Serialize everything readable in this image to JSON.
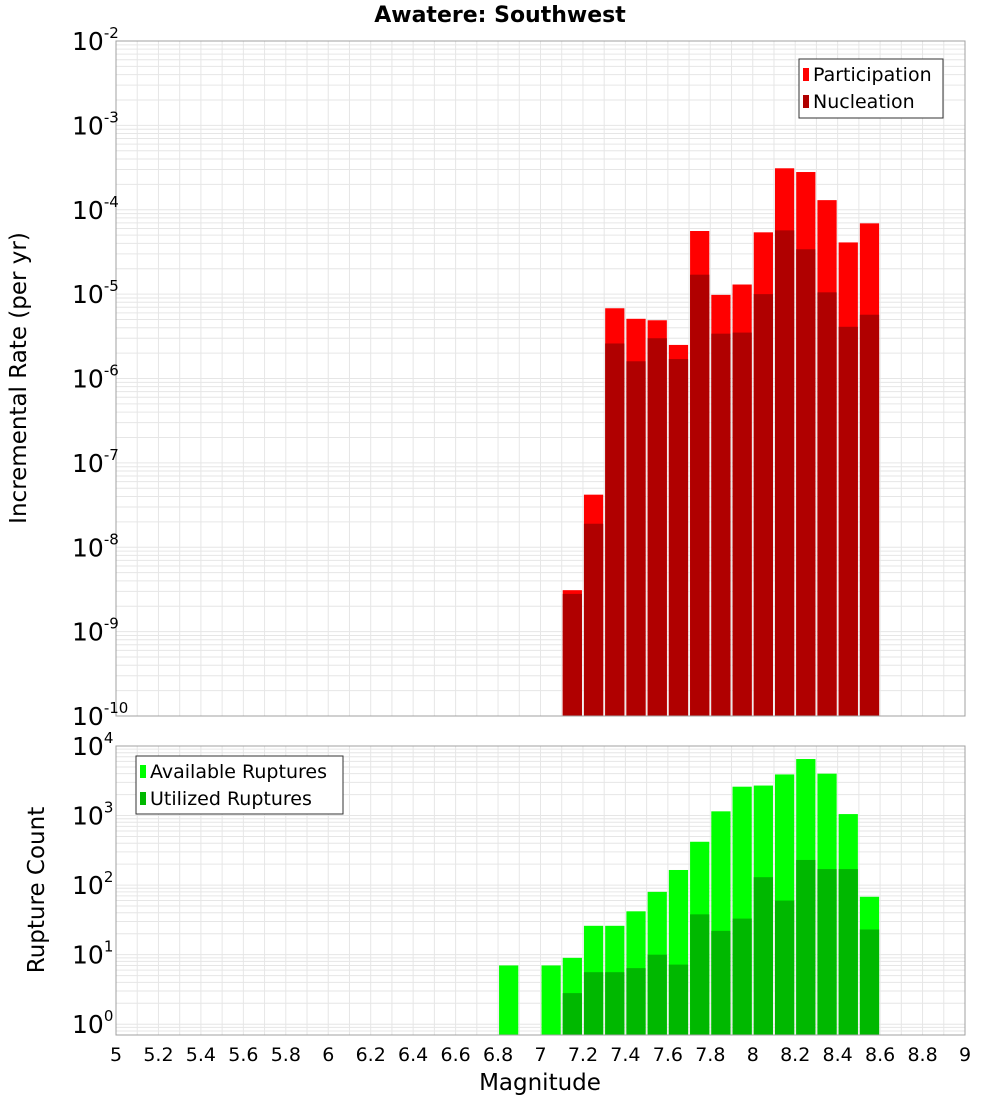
{
  "colors": {
    "participation": "#ff0000",
    "nucleation": "#b00000",
    "available": "#00ff00",
    "utilized": "#00b800",
    "grid": "#e6e6e6",
    "frame": "#a0a0a0"
  },
  "chart_data": [
    {
      "type": "bar",
      "title": "Awatere: Southwest",
      "ylabel": "Incremental Rate (per yr)",
      "yscale": "log",
      "ylim": [
        1e-10,
        0.01
      ],
      "xlim": [
        5,
        9
      ],
      "grid": true,
      "legend_placement": "top-right",
      "ytick_exponents": [
        -2,
        -3,
        -4,
        -5,
        -6,
        -7,
        -8,
        -9,
        -10
      ],
      "x": [
        7.15,
        7.25,
        7.35,
        7.45,
        7.55,
        7.65,
        7.75,
        7.85,
        7.95,
        8.05,
        8.15,
        8.25,
        8.35,
        8.45,
        8.55
      ],
      "series": [
        {
          "name": "Participation",
          "color_key": "participation",
          "values": [
            3.1e-09,
            4.2e-08,
            6.8e-06,
            5.1e-06,
            4.9e-06,
            2.5e-06,
            5.6e-05,
            9.8e-06,
            1.3e-05,
            5.4e-05,
            0.00031,
            0.00028,
            0.00013,
            4.1e-05,
            6.9e-05
          ]
        },
        {
          "name": "Nucleation",
          "color_key": "nucleation",
          "values": [
            2.8e-09,
            1.9e-08,
            2.6e-06,
            1.6e-06,
            3e-06,
            1.7e-06,
            1.7e-05,
            3.4e-06,
            3.5e-06,
            1e-05,
            5.7e-05,
            3.4e-05,
            1.05e-05,
            4.1e-06,
            5.7e-06
          ]
        }
      ]
    },
    {
      "type": "bar",
      "ylabel": "Rupture Count",
      "xlabel": "Magnitude",
      "yscale": "log",
      "ylim": [
        0.7,
        10000
      ],
      "xlim": [
        5,
        9
      ],
      "grid": true,
      "legend_placement": "top-left",
      "ytick_exponents": [
        4,
        3,
        2,
        1,
        0
      ],
      "x_ticks": [
        "5",
        "5.2",
        "5.4",
        "5.6",
        "5.8",
        "6",
        "6.2",
        "6.4",
        "6.6",
        "6.8",
        "7",
        "7.2",
        "7.4",
        "7.6",
        "7.8",
        "8",
        "8.2",
        "8.4",
        "8.6",
        "8.8",
        "9"
      ],
      "x": [
        6.85,
        7.05,
        7.15,
        7.25,
        7.35,
        7.45,
        7.55,
        7.65,
        7.75,
        7.85,
        7.95,
        8.05,
        8.15,
        8.25,
        8.35,
        8.45,
        8.55
      ],
      "series": [
        {
          "name": "Available Ruptures",
          "color_key": "available",
          "values": [
            7,
            7,
            9,
            26,
            26,
            42,
            80,
            165,
            420,
            1150,
            2600,
            2700,
            3900,
            6500,
            4000,
            1050,
            68
          ]
        },
        {
          "name": "Utilized Ruptures",
          "color_key": "utilized",
          "values": [
            null,
            null,
            2.8,
            5.6,
            5.6,
            6.4,
            10,
            7.2,
            38,
            22,
            33,
            130,
            60,
            230,
            170,
            170,
            23
          ]
        }
      ]
    }
  ]
}
